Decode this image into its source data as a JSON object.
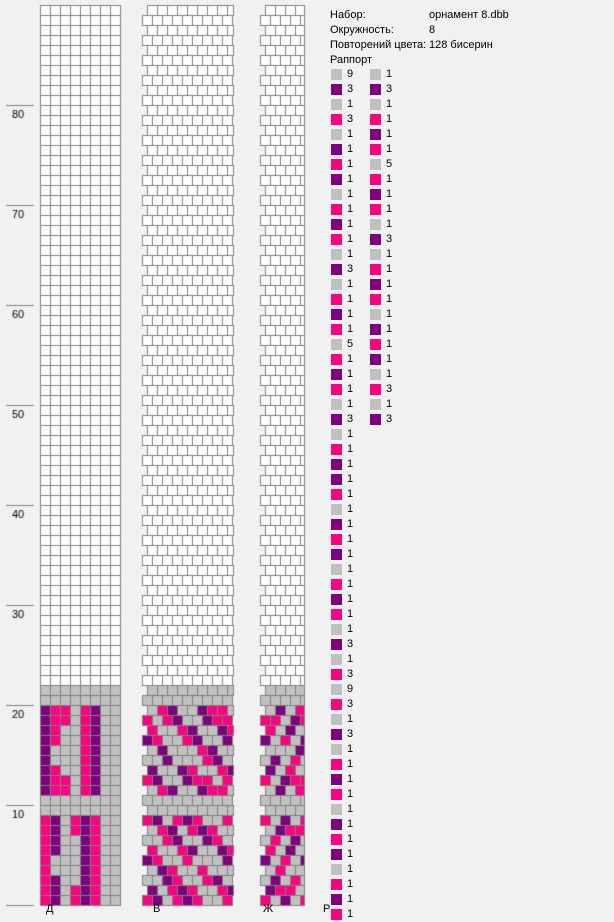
{
  "info": {
    "set_label": "Набор:",
    "set_value": "орнамент 8.dbb",
    "circ_label": "Окружность:",
    "circ_value": "8",
    "repeat_label": "Повторений цвета:",
    "repeat_value": "128 бисерин",
    "rapport_label": "Раппорт"
  },
  "axis_labels": [
    "10",
    "20",
    "30",
    "40",
    "50",
    "60",
    "70",
    "80"
  ],
  "colors": {
    "G": "#c0c0c0",
    "P": "#7f007f",
    "M": "#ff0080",
    "grid_bg": "#ffffff",
    "grid_line": "#808080"
  },
  "pattern_rows": [
    "MPGMPMGG",
    "MPGMPMGG",
    "MPGGPMGG",
    "MGGGPMGG",
    "MGGGPMGG",
    "MPGGPMGG",
    "MPGGPMGG",
    "MPGMPMGG",
    "MPGMPMGG",
    "GGGGGGGG",
    "GGGGGGGG",
    "PMMGMPGG",
    "PMMGMPGG",
    "PMGGMPGG",
    "PGGGMPGG",
    "PGGGMPGG",
    "PMGGMPGG",
    "PMGGMPGG",
    "PMMGMPGG",
    "PMMGMPGG",
    "GGGGGGGG",
    "GGGGGGGG"
  ],
  "bottom_labels": [
    "Д",
    "В",
    "Ж",
    "Р"
  ],
  "rapport_col1": [
    {
      "c": "G",
      "n": "9"
    },
    {
      "c": "P",
      "n": "3"
    },
    {
      "c": "G",
      "n": "1"
    },
    {
      "c": "M",
      "n": "3"
    },
    {
      "c": "G",
      "n": "1"
    },
    {
      "c": "P",
      "n": "1"
    },
    {
      "c": "M",
      "n": "1"
    },
    {
      "c": "P",
      "n": "1"
    },
    {
      "c": "G",
      "n": "1"
    },
    {
      "c": "M",
      "n": "1"
    },
    {
      "c": "P",
      "n": "1"
    },
    {
      "c": "M",
      "n": "1"
    },
    {
      "c": "G",
      "n": "1"
    },
    {
      "c": "P",
      "n": "3"
    },
    {
      "c": "G",
      "n": "1"
    },
    {
      "c": "M",
      "n": "1"
    },
    {
      "c": "P",
      "n": "1"
    },
    {
      "c": "M",
      "n": "1"
    },
    {
      "c": "G",
      "n": "5"
    },
    {
      "c": "M",
      "n": "1"
    },
    {
      "c": "P",
      "n": "1"
    },
    {
      "c": "M",
      "n": "1"
    },
    {
      "c": "G",
      "n": "1"
    },
    {
      "c": "P",
      "n": "3"
    },
    {
      "c": "G",
      "n": "1"
    },
    {
      "c": "M",
      "n": "1"
    },
    {
      "c": "P",
      "n": "1"
    },
    {
      "c": "P",
      "n": "1"
    },
    {
      "c": "M",
      "n": "1"
    },
    {
      "c": "G",
      "n": "1"
    },
    {
      "c": "P",
      "n": "1"
    },
    {
      "c": "M",
      "n": "1"
    },
    {
      "c": "P",
      "n": "1"
    },
    {
      "c": "G",
      "n": "1"
    },
    {
      "c": "M",
      "n": "1"
    },
    {
      "c": "P",
      "n": "1"
    },
    {
      "c": "M",
      "n": "1"
    },
    {
      "c": "G",
      "n": "1"
    },
    {
      "c": "P",
      "n": "3"
    },
    {
      "c": "G",
      "n": "1"
    },
    {
      "c": "M",
      "n": "3"
    },
    {
      "c": "G",
      "n": "9"
    },
    {
      "c": "M",
      "n": "3"
    },
    {
      "c": "G",
      "n": "1"
    },
    {
      "c": "P",
      "n": "3"
    },
    {
      "c": "G",
      "n": "1"
    },
    {
      "c": "M",
      "n": "1"
    },
    {
      "c": "P",
      "n": "1"
    },
    {
      "c": "M",
      "n": "1"
    },
    {
      "c": "G",
      "n": "1"
    },
    {
      "c": "P",
      "n": "1"
    },
    {
      "c": "M",
      "n": "1"
    },
    {
      "c": "P",
      "n": "1"
    },
    {
      "c": "G",
      "n": "1"
    },
    {
      "c": "M",
      "n": "1"
    },
    {
      "c": "P",
      "n": "1"
    },
    {
      "c": "M",
      "n": "1"
    }
  ],
  "rapport_col2": [
    {
      "c": "G",
      "n": "1"
    },
    {
      "c": "P",
      "n": "3"
    },
    {
      "c": "G",
      "n": "1"
    },
    {
      "c": "M",
      "n": "1"
    },
    {
      "c": "P",
      "n": "1"
    },
    {
      "c": "M",
      "n": "1"
    },
    {
      "c": "G",
      "n": "5"
    },
    {
      "c": "M",
      "n": "1"
    },
    {
      "c": "P",
      "n": "1"
    },
    {
      "c": "M",
      "n": "1"
    },
    {
      "c": "G",
      "n": "1"
    },
    {
      "c": "P",
      "n": "3"
    },
    {
      "c": "G",
      "n": "1"
    },
    {
      "c": "M",
      "n": "1"
    },
    {
      "c": "P",
      "n": "1"
    },
    {
      "c": "M",
      "n": "1"
    },
    {
      "c": "G",
      "n": "1"
    },
    {
      "c": "P",
      "n": "1"
    },
    {
      "c": "M",
      "n": "1"
    },
    {
      "c": "P",
      "n": "1"
    },
    {
      "c": "G",
      "n": "1"
    },
    {
      "c": "M",
      "n": "3"
    },
    {
      "c": "G",
      "n": "1"
    },
    {
      "c": "P",
      "n": "3"
    }
  ]
}
